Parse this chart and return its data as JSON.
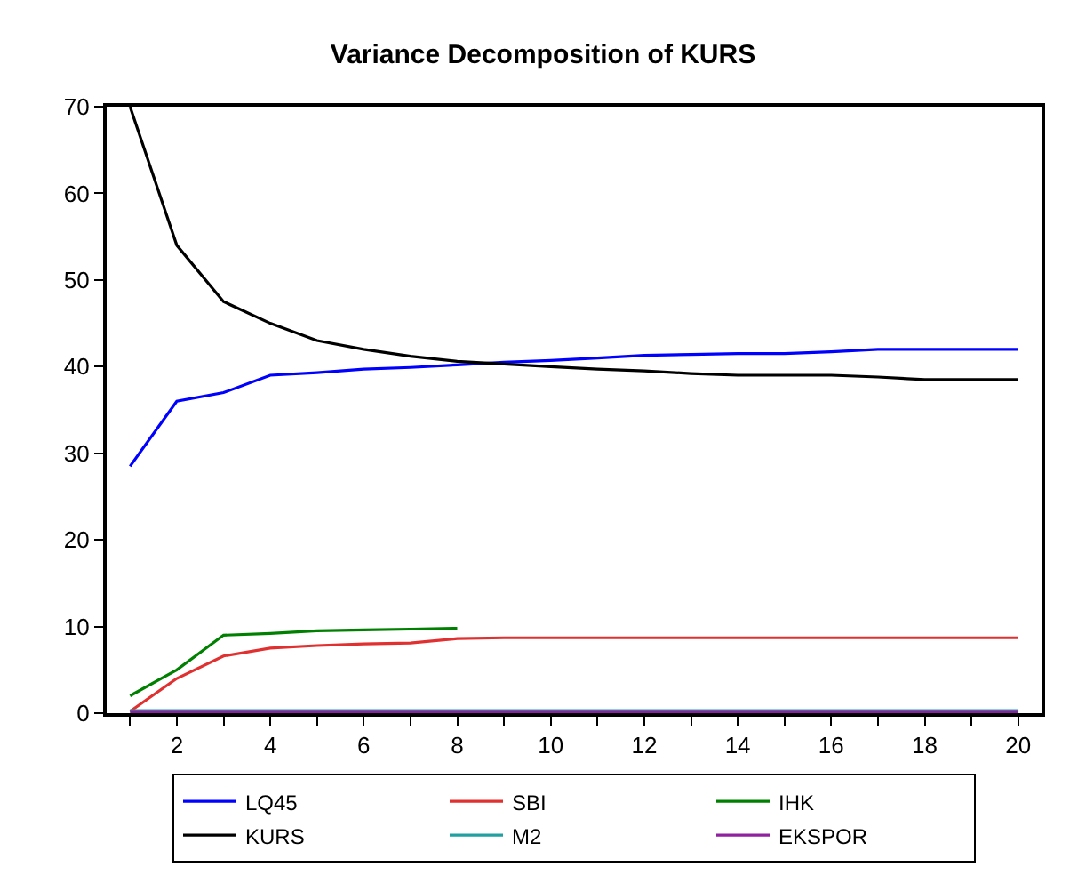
{
  "chart_data": {
    "type": "line",
    "title": "Variance Decomposition of KURS",
    "x": [
      1,
      2,
      3,
      4,
      5,
      6,
      7,
      8,
      9,
      10,
      11,
      12,
      13,
      14,
      15,
      16,
      17,
      18,
      19,
      20
    ],
    "xlim": [
      0.5,
      20.5
    ],
    "xticks": [
      {
        "value": 1,
        "label": null
      },
      2,
      {
        "value": 3,
        "label": null
      },
      4,
      {
        "value": 5,
        "label": null
      },
      6,
      {
        "value": 7,
        "label": null
      },
      8,
      {
        "value": 9,
        "label": null
      },
      10,
      {
        "value": 11,
        "label": null
      },
      12,
      {
        "value": 13,
        "label": null
      },
      14,
      {
        "value": 15,
        "label": null
      },
      16,
      {
        "value": 17,
        "label": null
      },
      18,
      {
        "value": 19,
        "label": null
      },
      20
    ],
    "ylim": [
      0,
      70
    ],
    "yticks": [
      0,
      10,
      20,
      30,
      40,
      50,
      60,
      70
    ],
    "legend": "bottom",
    "marker": "none",
    "line_style": "solid",
    "series": [
      {
        "name": "LQ45",
        "color": "#0000ff",
        "values": [
          28.5,
          36,
          37,
          39,
          39.3,
          39.7,
          39.9,
          40.2,
          40.5,
          40.7,
          41,
          41.3,
          41.4,
          41.5,
          41.5,
          41.7,
          42,
          42,
          42,
          42
        ]
      },
      {
        "name": "SBI",
        "color": "#e03030",
        "values": [
          0.2,
          4,
          6.6,
          7.5,
          7.8,
          8,
          8.1,
          8.6,
          8.7,
          8.7,
          8.7,
          8.7,
          8.7,
          8.7,
          8.7,
          8.7,
          8.7,
          8.7,
          8.7,
          8.7
        ]
      },
      {
        "name": "IHK",
        "color": "#008000",
        "values": [
          2,
          5,
          9,
          9.2,
          9.5,
          9.6,
          9.7,
          9.8,
          null,
          null,
          null,
          null,
          null,
          null,
          null,
          null,
          null,
          null,
          null,
          null
        ]
      },
      {
        "name": "KURS",
        "color": "#000000",
        "values": [
          70,
          54,
          47.5,
          45,
          43,
          42,
          41.2,
          40.6,
          40.3,
          40,
          39.7,
          39.5,
          39.2,
          39,
          39,
          39,
          38.8,
          38.5,
          38.5,
          38.5
        ]
      },
      {
        "name": "M2",
        "color": "#20a0a0",
        "values": [
          0.3,
          0.3,
          0.3,
          0.3,
          0.3,
          0.3,
          0.3,
          0.3,
          0.3,
          0.3,
          0.3,
          0.3,
          0.3,
          0.3,
          0.3,
          0.3,
          0.3,
          0.3,
          0.3,
          0.3
        ]
      },
      {
        "name": "EKSPOR",
        "color": "#9020a0",
        "values": [
          0.1,
          0.1,
          0.1,
          0.1,
          0.1,
          0.1,
          0.1,
          0.1,
          0.1,
          0.1,
          0.1,
          0.1,
          0.1,
          0.1,
          0.1,
          0.1,
          0.1,
          0.1,
          0.1,
          0.1
        ]
      }
    ]
  }
}
